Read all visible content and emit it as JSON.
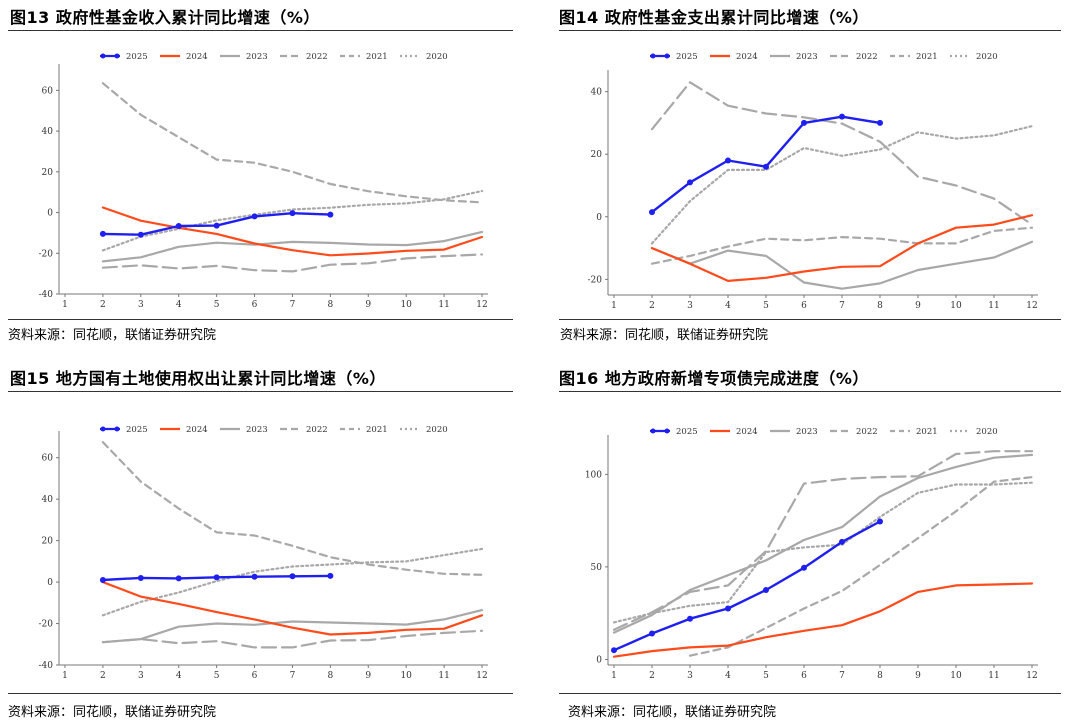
{
  "source_text": "资料来源：同花顺，联储证券研究院",
  "chart_data": [
    {
      "type": "line",
      "title": "图13 政府性基金收入累计同比增速（%）",
      "xlabel": "",
      "ylabel": "",
      "x_ticks": [
        "1",
        "2",
        "3",
        "4",
        "5",
        "6",
        "7",
        "8",
        "9",
        "10",
        "11",
        "12"
      ],
      "ylim": [
        -40,
        70
      ],
      "y_ticks": [
        -40,
        -20,
        0,
        20,
        40,
        60
      ],
      "series": [
        {
          "name": "2025",
          "color": "#1f1ff0",
          "style": "marker",
          "x": [
            2,
            3,
            4,
            5,
            6,
            7,
            8
          ],
          "values": [
            -10.5,
            -10.9,
            -6.6,
            -6.4,
            -1.9,
            -0.3,
            -1.0
          ]
        },
        {
          "name": "2024",
          "color": "#ff4a1a",
          "style": "solid",
          "x": [
            2,
            3,
            4,
            5,
            6,
            7,
            8,
            9,
            10,
            11,
            12
          ],
          "values": [
            2.5,
            -4.0,
            -7.5,
            -10.5,
            -15.2,
            -18.5,
            -21.0,
            -20.1,
            -18.8,
            -18.2,
            -12.0
          ]
        },
        {
          "name": "2023",
          "color": "#a8a8a8",
          "style": "solid",
          "x": [
            2,
            3,
            4,
            5,
            6,
            7,
            8,
            9,
            10,
            11,
            12
          ],
          "values": [
            -24.0,
            -22.0,
            -16.8,
            -14.8,
            -15.8,
            -14.4,
            -14.9,
            -15.7,
            -16.0,
            -14.0,
            -9.5
          ]
        },
        {
          "name": "2022",
          "color": "#a8a8a8",
          "style": "dash",
          "x": [
            2,
            3,
            4,
            5,
            6,
            7,
            8,
            9,
            10,
            11,
            12
          ],
          "values": [
            -27.1,
            -25.9,
            -27.5,
            -26.2,
            -28.3,
            -28.9,
            -25.6,
            -24.9,
            -22.5,
            -21.4,
            -20.6
          ]
        },
        {
          "name": "2021",
          "color": "#a8a8a8",
          "style": "dash2",
          "x": [
            2,
            3,
            4,
            5,
            6,
            7,
            8,
            9,
            10,
            11,
            12
          ],
          "values": [
            63.5,
            48.0,
            37.0,
            26.0,
            24.5,
            20.0,
            14.0,
            10.5,
            8.0,
            6.0,
            5.0
          ]
        },
        {
          "name": "2020",
          "color": "#a8a8a8",
          "style": "dot",
          "x": [
            2,
            3,
            4,
            5,
            6,
            7,
            8,
            9,
            10,
            11,
            12
          ],
          "values": [
            -18.6,
            -11.8,
            -8.0,
            -3.8,
            -1.1,
            1.5,
            2.4,
            3.8,
            4.5,
            6.5,
            10.6
          ]
        }
      ]
    },
    {
      "type": "line",
      "title": "图14 政府性基金支出累计同比增速（%）",
      "xlabel": "",
      "ylabel": "",
      "x_ticks": [
        "1",
        "2",
        "3",
        "4",
        "5",
        "6",
        "7",
        "8",
        "9",
        "10",
        "11",
        "12"
      ],
      "ylim": [
        -25,
        45
      ],
      "y_ticks": [
        -20,
        0,
        20,
        40
      ],
      "series": [
        {
          "name": "2025",
          "color": "#1f1ff0",
          "style": "marker",
          "x": [
            2,
            3,
            4,
            5,
            6,
            7,
            8
          ],
          "values": [
            1.5,
            11.0,
            18.0,
            16.0,
            30.0,
            32.0,
            30.0
          ]
        },
        {
          "name": "2024",
          "color": "#ff4a1a",
          "style": "solid",
          "x": [
            2,
            3,
            4,
            5,
            6,
            7,
            8,
            9,
            10,
            11,
            12
          ],
          "values": [
            -10.0,
            -15.0,
            -20.5,
            -19.5,
            -17.5,
            -16.0,
            -15.8,
            -8.5,
            -3.5,
            -2.5,
            0.5
          ]
        },
        {
          "name": "2023",
          "color": "#a8a8a8",
          "style": "solid",
          "x": [
            2,
            3,
            4,
            5,
            6,
            7,
            8,
            9,
            10,
            11,
            12
          ],
          "values": [
            -10.0,
            -15.0,
            -10.8,
            -12.5,
            -21.0,
            -23.0,
            -21.3,
            -17.0,
            -15.0,
            -13.0,
            -8.0
          ]
        },
        {
          "name": "2022",
          "color": "#a8a8a8",
          "style": "dash",
          "x": [
            2,
            3,
            4,
            5,
            6,
            7,
            8,
            9,
            10,
            11,
            12
          ],
          "values": [
            28.0,
            43.0,
            35.5,
            33.0,
            31.8,
            29.8,
            24.0,
            12.8,
            10.0,
            5.8,
            -2.5
          ]
        },
        {
          "name": "2021",
          "color": "#a8a8a8",
          "style": "dash2",
          "x": [
            2,
            3,
            4,
            5,
            6,
            7,
            8,
            9,
            10,
            11,
            12
          ],
          "values": [
            -15.0,
            -12.5,
            -9.5,
            -7.0,
            -7.5,
            -6.5,
            -7.0,
            -8.5,
            -8.5,
            -4.5,
            -3.5
          ]
        },
        {
          "name": "2020",
          "color": "#a8a8a8",
          "style": "dot",
          "x": [
            2,
            3,
            4,
            5,
            6,
            7,
            8,
            9,
            10,
            11,
            12
          ],
          "values": [
            -8.5,
            5.0,
            15.0,
            15.0,
            22.0,
            19.5,
            21.5,
            27.0,
            25.0,
            26.0,
            29.0
          ]
        }
      ]
    },
    {
      "type": "line",
      "title": "图15 地方国有土地使用权出让累计同比增速（%）",
      "xlabel": "",
      "ylabel": "",
      "x_ticks": [
        "1",
        "2",
        "3",
        "4",
        "5",
        "6",
        "7",
        "8",
        "9",
        "10",
        "11",
        "12"
      ],
      "ylim": [
        -40,
        70
      ],
      "y_ticks": [
        -40,
        -20,
        0,
        20,
        40,
        60
      ],
      "series": [
        {
          "name": "2025",
          "color": "#1f1ff0",
          "style": "marker",
          "x": [
            2,
            3,
            4,
            5,
            6,
            7,
            8
          ],
          "values": [
            1.0,
            2.0,
            1.8,
            2.3,
            2.6,
            2.8,
            3.0
          ]
        },
        {
          "name": "2024",
          "color": "#ff4a1a",
          "style": "solid",
          "x": [
            2,
            3,
            4,
            5,
            6,
            7,
            8,
            9,
            10,
            11,
            12
          ],
          "values": [
            0.0,
            -7.0,
            -10.5,
            -14.5,
            -18.0,
            -22.0,
            -25.3,
            -24.5,
            -23.0,
            -22.5,
            -16.0
          ]
        },
        {
          "name": "2023",
          "color": "#a8a8a8",
          "style": "solid",
          "x": [
            2,
            3,
            4,
            5,
            6,
            7,
            8,
            9,
            10,
            11,
            12
          ],
          "values": [
            -29.0,
            -27.5,
            -21.5,
            -20.0,
            -20.6,
            -19.0,
            -19.5,
            -20.0,
            -20.5,
            -18.0,
            -13.5
          ]
        },
        {
          "name": "2022",
          "color": "#a8a8a8",
          "style": "dash",
          "x": [
            2,
            3,
            4,
            5,
            6,
            7,
            8,
            9,
            10,
            11,
            12
          ],
          "values": [
            -29.0,
            -27.5,
            -29.5,
            -28.5,
            -31.5,
            -31.5,
            -28.2,
            -28.0,
            -26.0,
            -24.5,
            -23.5
          ]
        },
        {
          "name": "2021",
          "color": "#a8a8a8",
          "style": "dash2",
          "x": [
            2,
            3,
            4,
            5,
            6,
            7,
            8,
            9,
            10,
            11,
            12
          ],
          "values": [
            67.5,
            48.5,
            35.5,
            24.0,
            22.5,
            17.5,
            12.0,
            8.5,
            6.0,
            4.0,
            3.5
          ]
        },
        {
          "name": "2020",
          "color": "#a8a8a8",
          "style": "dot",
          "x": [
            2,
            3,
            4,
            5,
            6,
            7,
            8,
            9,
            10,
            11,
            12
          ],
          "values": [
            -16.0,
            -9.5,
            -5.0,
            0.5,
            5.0,
            7.5,
            8.5,
            9.5,
            10.0,
            13.0,
            16.0
          ]
        }
      ]
    },
    {
      "type": "line",
      "title": "图16 地方政府新增专项债完成进度（%）",
      "xlabel": "",
      "ylabel": "",
      "x_ticks": [
        "1",
        "2",
        "3",
        "4",
        "5",
        "6",
        "7",
        "8",
        "9",
        "10",
        "11",
        "12"
      ],
      "ylim": [
        -3,
        118
      ],
      "y_ticks": [
        0,
        50,
        100
      ],
      "series": [
        {
          "name": "2025",
          "color": "#1f1ff0",
          "style": "marker",
          "x": [
            1,
            2,
            3,
            4,
            5,
            6,
            7,
            8
          ],
          "values": [
            5.0,
            14.0,
            22.0,
            27.5,
            37.5,
            49.5,
            63.5,
            74.5
          ]
        },
        {
          "name": "2024",
          "color": "#ff4a1a",
          "style": "solid",
          "x": [
            1,
            2,
            3,
            4,
            5,
            6,
            7,
            8,
            9,
            10,
            11,
            12
          ],
          "values": [
            1.5,
            4.5,
            6.5,
            7.5,
            12.0,
            15.5,
            18.5,
            26.0,
            36.5,
            40.0,
            40.5,
            41.0
          ]
        },
        {
          "name": "2023",
          "color": "#a8a8a8",
          "style": "solid",
          "x": [
            1,
            2,
            3,
            4,
            5,
            6,
            7,
            8,
            9,
            10,
            11,
            12
          ],
          "values": [
            14.5,
            24.0,
            37.5,
            45.5,
            53.5,
            64.5,
            71.5,
            88.0,
            98.0,
            104.0,
            109.0,
            110.5
          ]
        },
        {
          "name": "2022",
          "color": "#a8a8a8",
          "style": "dash",
          "x": [
            1,
            2,
            3,
            4,
            5,
            6,
            7,
            8,
            9,
            10,
            11,
            12
          ],
          "values": [
            16.0,
            25.5,
            36.5,
            40.0,
            58.5,
            95.0,
            97.5,
            98.5,
            99.0,
            111.0,
            112.5,
            112.5
          ]
        },
        {
          "name": "2021",
          "color": "#a8a8a8",
          "style": "dash2",
          "x": [
            3,
            4,
            5,
            6,
            7,
            8,
            9,
            10,
            11,
            12
          ],
          "values": [
            2.0,
            6.5,
            17.0,
            27.5,
            37.0,
            51.0,
            65.5,
            80.0,
            96.0,
            98.5
          ]
        },
        {
          "name": "2020",
          "color": "#a8a8a8",
          "style": "dot",
          "x": [
            1,
            2,
            3,
            4,
            5,
            6,
            7,
            8,
            9,
            10,
            11,
            12
          ],
          "values": [
            20.0,
            25.0,
            29.0,
            31.0,
            58.0,
            60.5,
            62.0,
            77.0,
            90.0,
            94.5,
            94.5,
            95.5
          ]
        }
      ]
    }
  ]
}
